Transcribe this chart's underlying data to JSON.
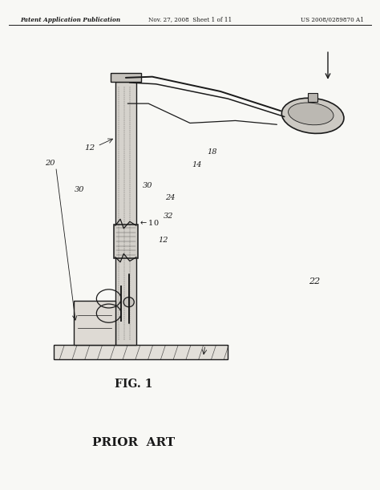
{
  "bg_color": "#f8f8f5",
  "line_color": "#1a1a1a",
  "header_text": "Patent Application Publication",
  "header_date": "Nov. 27, 2008  Sheet 1 of 11",
  "header_patent": "US 2008/0289870 A1",
  "fig_label": "FIG. 1",
  "prior_art_label": "PRIOR  ART"
}
